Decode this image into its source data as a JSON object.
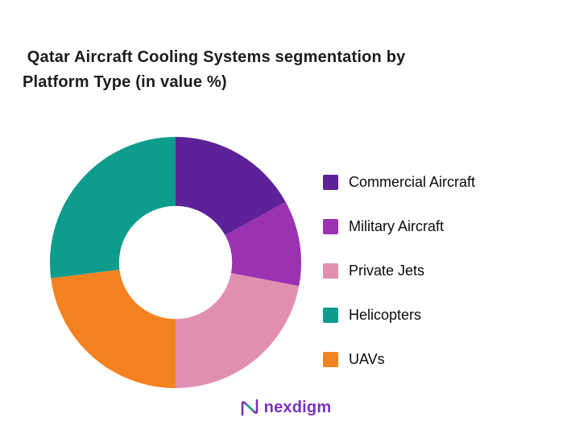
{
  "title": " Qatar Aircraft Cooling Systems segmentation by\nPlatform Type (in value %)",
  "chart_data": {
    "type": "pie",
    "variant": "donut",
    "title": "Qatar Aircraft Cooling Systems segmentation by Platform Type (in value %)",
    "unit": "value %",
    "hole_ratio": 0.45,
    "start_angle": "12 o'clock, clockwise",
    "segments_clockwise_from_top": [
      {
        "label": "Commercial Aircraft",
        "value": 17,
        "color": "#5E2198"
      },
      {
        "label": "Military Aircraft",
        "value": 11,
        "color": "#9B32B2"
      },
      {
        "label": "Private Jets",
        "value": 22,
        "color": "#E18FB1"
      },
      {
        "label": "UAVs",
        "value": 23,
        "color": "#F58220"
      },
      {
        "label": "Helicopters",
        "value": 27,
        "color": "#0E9C8C"
      }
    ],
    "legend_order": [
      "Commercial Aircraft",
      "Military Aircraft",
      "Private Jets",
      "Helicopters",
      "UAVs"
    ],
    "legend_position": "right",
    "data_labels_shown": false
  },
  "logo": {
    "text": "nexdigm",
    "color": "#7B2FBE",
    "accent_color": "#16A08F"
  }
}
